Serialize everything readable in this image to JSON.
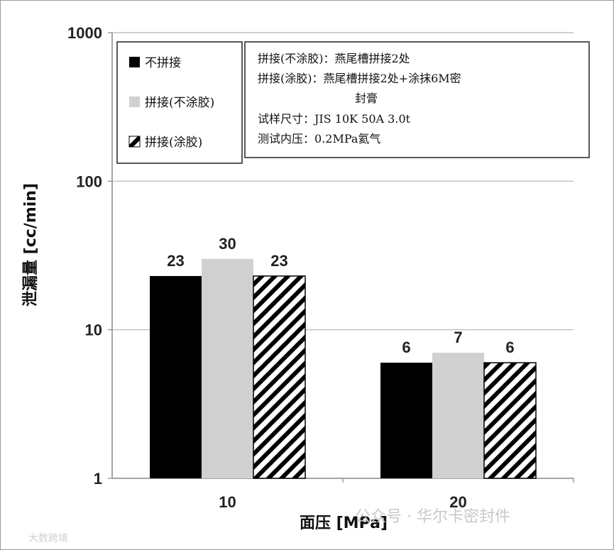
{
  "chart_data": {
    "type": "bar",
    "y_scale": "log",
    "ylim": [
      1,
      1000
    ],
    "y_ticks": [
      "1",
      "10",
      "100",
      "1000"
    ],
    "ylabel": "泄漏量 [cc/min]",
    "xlabel": "面压 [MPa]",
    "categories": [
      "10",
      "20"
    ],
    "series": [
      {
        "name": "不拼接",
        "values": [
          23,
          6
        ],
        "color": "#000000",
        "pattern": "solid"
      },
      {
        "name": "拼接(不涂胶)",
        "values": [
          30,
          7
        ],
        "color": "#d0d0d0",
        "pattern": "solid"
      },
      {
        "name": "拼接(涂胶)",
        "values": [
          23,
          6
        ],
        "color": "#000000",
        "pattern": "hatch"
      }
    ],
    "data_labels": [
      [
        "23",
        "6"
      ],
      [
        "30",
        "7"
      ],
      [
        "23",
        "6"
      ]
    ],
    "grid": "horizontal",
    "legend_position": "top-left"
  },
  "notes": [
    "拼接(不涂胶)：燕尾槽拼接2处",
    "拼接(涂胶)：燕尾槽拼接2处+涂抹6M密",
    "封膏",
    "试样尺寸：JIS 10K 50A 3.0t",
    "测试内压：0.2MPa氦气"
  ],
  "watermark": {
    "main": "公众号 · 华尔卡密封件",
    "corner": "大数跨境"
  }
}
